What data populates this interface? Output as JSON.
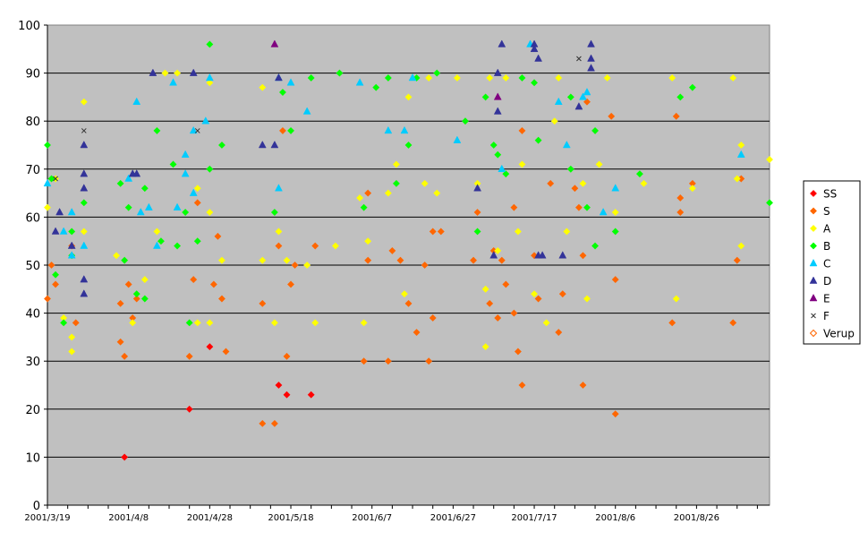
{
  "chart_data": {
    "type": "scatter",
    "x_axis_type": "date",
    "xlim": [
      "2001-03-19",
      "2001-09-13"
    ],
    "ylim": [
      0,
      100
    ],
    "y_ticks": [
      0,
      10,
      20,
      30,
      40,
      50,
      60,
      70,
      80,
      90,
      100
    ],
    "x_tick_labels": [
      "2001/3/19",
      "2001/4/8",
      "2001/4/28",
      "2001/5/18",
      "2001/6/7",
      "2001/6/27",
      "2001/7/17",
      "2001/8/6",
      "2001/8/26"
    ],
    "x_tick_dates": [
      "2001-03-19",
      "2001-04-08",
      "2001-04-28",
      "2001-05-18",
      "2001-06-07",
      "2001-06-27",
      "2001-07-17",
      "2001-08-06",
      "2001-08-26"
    ],
    "grid": "horizontal",
    "plot_background": "#c0c0c0",
    "legend_position": "right",
    "series": [
      {
        "name": "SS",
        "marker": "diamond",
        "color": "#ff0000",
        "fill": true,
        "points": [
          [
            "2001-04-07",
            10
          ],
          [
            "2001-04-23",
            20
          ],
          [
            "2001-04-28",
            33
          ],
          [
            "2001-05-15",
            25
          ],
          [
            "2001-05-17",
            23
          ],
          [
            "2001-05-23",
            23
          ]
        ]
      },
      {
        "name": "S",
        "marker": "diamond",
        "color": "#ff6600",
        "fill": true,
        "points": [
          [
            "2001-03-19",
            43
          ],
          [
            "2001-03-20",
            50
          ],
          [
            "2001-03-21",
            46
          ],
          [
            "2001-03-25",
            54
          ],
          [
            "2001-03-26",
            38
          ],
          [
            "2001-04-06",
            42
          ],
          [
            "2001-04-06",
            34
          ],
          [
            "2001-04-07",
            31
          ],
          [
            "2001-04-08",
            46
          ],
          [
            "2001-04-09",
            39
          ],
          [
            "2001-04-10",
            43
          ],
          [
            "2001-04-23",
            31
          ],
          [
            "2001-04-24",
            47
          ],
          [
            "2001-04-25",
            63
          ],
          [
            "2001-04-29",
            46
          ],
          [
            "2001-04-30",
            56
          ],
          [
            "2001-05-01",
            43
          ],
          [
            "2001-05-02",
            32
          ],
          [
            "2001-05-11",
            42
          ],
          [
            "2001-05-11",
            17
          ],
          [
            "2001-05-14",
            17
          ],
          [
            "2001-05-15",
            54
          ],
          [
            "2001-05-16",
            78
          ],
          [
            "2001-05-17",
            31
          ],
          [
            "2001-05-18",
            46
          ],
          [
            "2001-05-19",
            50
          ],
          [
            "2001-05-24",
            54
          ],
          [
            "2001-06-05",
            30
          ],
          [
            "2001-06-06",
            51
          ],
          [
            "2001-06-06",
            65
          ],
          [
            "2001-06-11",
            30
          ],
          [
            "2001-06-12",
            53
          ],
          [
            "2001-06-14",
            51
          ],
          [
            "2001-06-16",
            42
          ],
          [
            "2001-06-18",
            36
          ],
          [
            "2001-06-20",
            50
          ],
          [
            "2001-06-21",
            30
          ],
          [
            "2001-06-22",
            57
          ],
          [
            "2001-06-22",
            39
          ],
          [
            "2001-06-24",
            57
          ],
          [
            "2001-07-02",
            51
          ],
          [
            "2001-07-03",
            61
          ],
          [
            "2001-07-06",
            42
          ],
          [
            "2001-07-07",
            53
          ],
          [
            "2001-07-08",
            39
          ],
          [
            "2001-07-09",
            51
          ],
          [
            "2001-07-10",
            46
          ],
          [
            "2001-07-12",
            62
          ],
          [
            "2001-07-12",
            40
          ],
          [
            "2001-07-13",
            32
          ],
          [
            "2001-07-14",
            25
          ],
          [
            "2001-07-14",
            78
          ],
          [
            "2001-07-17",
            52
          ],
          [
            "2001-07-18",
            43
          ],
          [
            "2001-07-21",
            67
          ],
          [
            "2001-07-23",
            36
          ],
          [
            "2001-07-24",
            44
          ],
          [
            "2001-07-27",
            66
          ],
          [
            "2001-07-28",
            62
          ],
          [
            "2001-07-29",
            52
          ],
          [
            "2001-07-29",
            25
          ],
          [
            "2001-07-30",
            84
          ],
          [
            "2001-08-05",
            81
          ],
          [
            "2001-08-06",
            47
          ],
          [
            "2001-08-06",
            19
          ],
          [
            "2001-08-20",
            38
          ],
          [
            "2001-08-21",
            81
          ],
          [
            "2001-08-22",
            64
          ],
          [
            "2001-08-22",
            61
          ],
          [
            "2001-08-25",
            67
          ],
          [
            "2001-09-04",
            38
          ],
          [
            "2001-09-05",
            51
          ],
          [
            "2001-09-06",
            68
          ]
        ]
      },
      {
        "name": "A",
        "marker": "diamond",
        "color": "#ffff00",
        "fill": true,
        "points": [
          [
            "2001-03-19",
            62
          ],
          [
            "2001-03-21",
            68
          ],
          [
            "2001-03-23",
            39
          ],
          [
            "2001-03-25",
            35
          ],
          [
            "2001-03-25",
            32
          ],
          [
            "2001-03-28",
            84
          ],
          [
            "2001-03-28",
            57
          ],
          [
            "2001-04-05",
            52
          ],
          [
            "2001-04-09",
            38
          ],
          [
            "2001-04-12",
            47
          ],
          [
            "2001-04-15",
            57
          ],
          [
            "2001-04-17",
            90
          ],
          [
            "2001-04-20",
            90
          ],
          [
            "2001-04-25",
            66
          ],
          [
            "2001-04-25",
            38
          ],
          [
            "2001-04-28",
            88
          ],
          [
            "2001-04-28",
            61
          ],
          [
            "2001-04-28",
            38
          ],
          [
            "2001-05-01",
            51
          ],
          [
            "2001-05-11",
            87
          ],
          [
            "2001-05-11",
            51
          ],
          [
            "2001-05-14",
            38
          ],
          [
            "2001-05-15",
            57
          ],
          [
            "2001-05-17",
            51
          ],
          [
            "2001-05-22",
            50
          ],
          [
            "2001-05-24",
            38
          ],
          [
            "2001-05-29",
            54
          ],
          [
            "2001-06-04",
            64
          ],
          [
            "2001-06-05",
            38
          ],
          [
            "2001-06-06",
            55
          ],
          [
            "2001-06-11",
            65
          ],
          [
            "2001-06-13",
            71
          ],
          [
            "2001-06-15",
            44
          ],
          [
            "2001-06-16",
            85
          ],
          [
            "2001-06-20",
            67
          ],
          [
            "2001-06-21",
            89
          ],
          [
            "2001-06-23",
            65
          ],
          [
            "2001-06-28",
            89
          ],
          [
            "2001-07-03",
            67
          ],
          [
            "2001-07-05",
            33
          ],
          [
            "2001-07-05",
            45
          ],
          [
            "2001-07-06",
            89
          ],
          [
            "2001-07-08",
            53
          ],
          [
            "2001-07-10",
            89
          ],
          [
            "2001-07-13",
            57
          ],
          [
            "2001-07-14",
            71
          ],
          [
            "2001-07-17",
            44
          ],
          [
            "2001-07-20",
            38
          ],
          [
            "2001-07-22",
            80
          ],
          [
            "2001-07-23",
            89
          ],
          [
            "2001-07-25",
            57
          ],
          [
            "2001-07-29",
            67
          ],
          [
            "2001-07-30",
            43
          ],
          [
            "2001-08-02",
            71
          ],
          [
            "2001-08-04",
            89
          ],
          [
            "2001-08-06",
            61
          ],
          [
            "2001-08-13",
            67
          ],
          [
            "2001-08-20",
            89
          ],
          [
            "2001-08-21",
            43
          ],
          [
            "2001-08-25",
            66
          ],
          [
            "2001-09-04",
            89
          ],
          [
            "2001-09-05",
            68
          ],
          [
            "2001-09-06",
            75
          ],
          [
            "2001-09-06",
            54
          ],
          [
            "2001-09-13",
            72
          ]
        ]
      },
      {
        "name": "B",
        "marker": "diamond",
        "color": "#00ff00",
        "fill": true,
        "points": [
          [
            "2001-03-19",
            75
          ],
          [
            "2001-03-20",
            68
          ],
          [
            "2001-03-21",
            48
          ],
          [
            "2001-03-23",
            38
          ],
          [
            "2001-03-25",
            57
          ],
          [
            "2001-03-25",
            52
          ],
          [
            "2001-03-28",
            63
          ],
          [
            "2001-04-06",
            67
          ],
          [
            "2001-04-07",
            51
          ],
          [
            "2001-04-08",
            62
          ],
          [
            "2001-04-10",
            44
          ],
          [
            "2001-04-12",
            66
          ],
          [
            "2001-04-12",
            43
          ],
          [
            "2001-04-15",
            78
          ],
          [
            "2001-04-16",
            55
          ],
          [
            "2001-04-19",
            71
          ],
          [
            "2001-04-20",
            54
          ],
          [
            "2001-04-22",
            61
          ],
          [
            "2001-04-23",
            38
          ],
          [
            "2001-04-25",
            55
          ],
          [
            "2001-04-28",
            96
          ],
          [
            "2001-04-28",
            70
          ],
          [
            "2001-05-01",
            75
          ],
          [
            "2001-05-14",
            61
          ],
          [
            "2001-05-16",
            86
          ],
          [
            "2001-05-18",
            78
          ],
          [
            "2001-05-23",
            89
          ],
          [
            "2001-05-30",
            90
          ],
          [
            "2001-06-05",
            62
          ],
          [
            "2001-06-08",
            87
          ],
          [
            "2001-06-11",
            89
          ],
          [
            "2001-06-13",
            67
          ],
          [
            "2001-06-16",
            75
          ],
          [
            "2001-06-18",
            89
          ],
          [
            "2001-06-23",
            90
          ],
          [
            "2001-06-30",
            80
          ],
          [
            "2001-07-03",
            57
          ],
          [
            "2001-07-05",
            85
          ],
          [
            "2001-07-07",
            75
          ],
          [
            "2001-07-08",
            73
          ],
          [
            "2001-07-10",
            69
          ],
          [
            "2001-07-14",
            89
          ],
          [
            "2001-07-17",
            88
          ],
          [
            "2001-07-18",
            76
          ],
          [
            "2001-07-26",
            70
          ],
          [
            "2001-07-26",
            85
          ],
          [
            "2001-07-30",
            62
          ],
          [
            "2001-08-01",
            54
          ],
          [
            "2001-08-01",
            78
          ],
          [
            "2001-08-06",
            57
          ],
          [
            "2001-08-12",
            69
          ],
          [
            "2001-08-22",
            85
          ],
          [
            "2001-08-25",
            87
          ],
          [
            "2001-09-13",
            63
          ]
        ]
      },
      {
        "name": "C",
        "marker": "triangle",
        "color": "#00ccff",
        "fill": true,
        "points": [
          [
            "2001-03-19",
            67
          ],
          [
            "2001-03-23",
            57
          ],
          [
            "2001-03-25",
            52
          ],
          [
            "2001-03-25",
            61
          ],
          [
            "2001-03-28",
            54
          ],
          [
            "2001-04-08",
            68
          ],
          [
            "2001-04-10",
            84
          ],
          [
            "2001-04-11",
            61
          ],
          [
            "2001-04-13",
            62
          ],
          [
            "2001-04-15",
            54
          ],
          [
            "2001-04-19",
            88
          ],
          [
            "2001-04-20",
            62
          ],
          [
            "2001-04-22",
            73
          ],
          [
            "2001-04-22",
            69
          ],
          [
            "2001-04-24",
            65
          ],
          [
            "2001-04-24",
            78
          ],
          [
            "2001-04-27",
            80
          ],
          [
            "2001-04-28",
            89
          ],
          [
            "2001-05-15",
            89
          ],
          [
            "2001-05-15",
            66
          ],
          [
            "2001-05-18",
            88
          ],
          [
            "2001-05-22",
            82
          ],
          [
            "2001-06-04",
            88
          ],
          [
            "2001-06-11",
            78
          ],
          [
            "2001-06-15",
            78
          ],
          [
            "2001-06-17",
            89
          ],
          [
            "2001-06-28",
            76
          ],
          [
            "2001-07-09",
            70
          ],
          [
            "2001-07-16",
            96
          ],
          [
            "2001-07-23",
            84
          ],
          [
            "2001-07-25",
            75
          ],
          [
            "2001-07-29",
            85
          ],
          [
            "2001-07-30",
            86
          ],
          [
            "2001-08-03",
            61
          ],
          [
            "2001-08-06",
            66
          ],
          [
            "2001-09-06",
            73
          ]
        ]
      },
      {
        "name": "D",
        "marker": "triangle",
        "color": "#333399",
        "fill": true,
        "points": [
          [
            "2001-03-21",
            57
          ],
          [
            "2001-03-22",
            61
          ],
          [
            "2001-03-25",
            54
          ],
          [
            "2001-03-28",
            75
          ],
          [
            "2001-03-28",
            69
          ],
          [
            "2001-03-28",
            66
          ],
          [
            "2001-03-28",
            47
          ],
          [
            "2001-03-28",
            44
          ],
          [
            "2001-04-09",
            69
          ],
          [
            "2001-04-10",
            69
          ],
          [
            "2001-04-14",
            90
          ],
          [
            "2001-04-24",
            90
          ],
          [
            "2001-05-11",
            75
          ],
          [
            "2001-05-14",
            75
          ],
          [
            "2001-05-15",
            89
          ],
          [
            "2001-07-03",
            66
          ],
          [
            "2001-07-07",
            52
          ],
          [
            "2001-07-08",
            90
          ],
          [
            "2001-07-08",
            82
          ],
          [
            "2001-07-09",
            96
          ],
          [
            "2001-07-17",
            96
          ],
          [
            "2001-07-17",
            95
          ],
          [
            "2001-07-18",
            93
          ],
          [
            "2001-07-18",
            52
          ],
          [
            "2001-07-19",
            52
          ],
          [
            "2001-07-24",
            52
          ],
          [
            "2001-07-28",
            83
          ],
          [
            "2001-07-31",
            96
          ],
          [
            "2001-07-31",
            93
          ],
          [
            "2001-07-31",
            91
          ]
        ]
      },
      {
        "name": "E",
        "marker": "triangle",
        "color": "#800080",
        "fill": true,
        "points": [
          [
            "2001-05-14",
            96
          ],
          [
            "2001-07-08",
            85
          ]
        ]
      },
      {
        "name": "F",
        "marker": "x",
        "color": "#333333",
        "fill": false,
        "points": [
          [
            "2001-03-21",
            68
          ],
          [
            "2001-03-28",
            78
          ],
          [
            "2001-04-25",
            78
          ],
          [
            "2001-07-28",
            93
          ]
        ]
      },
      {
        "name": "Verup",
        "marker": "diamond",
        "color": "#ff6600",
        "fill": false,
        "points": []
      }
    ]
  }
}
